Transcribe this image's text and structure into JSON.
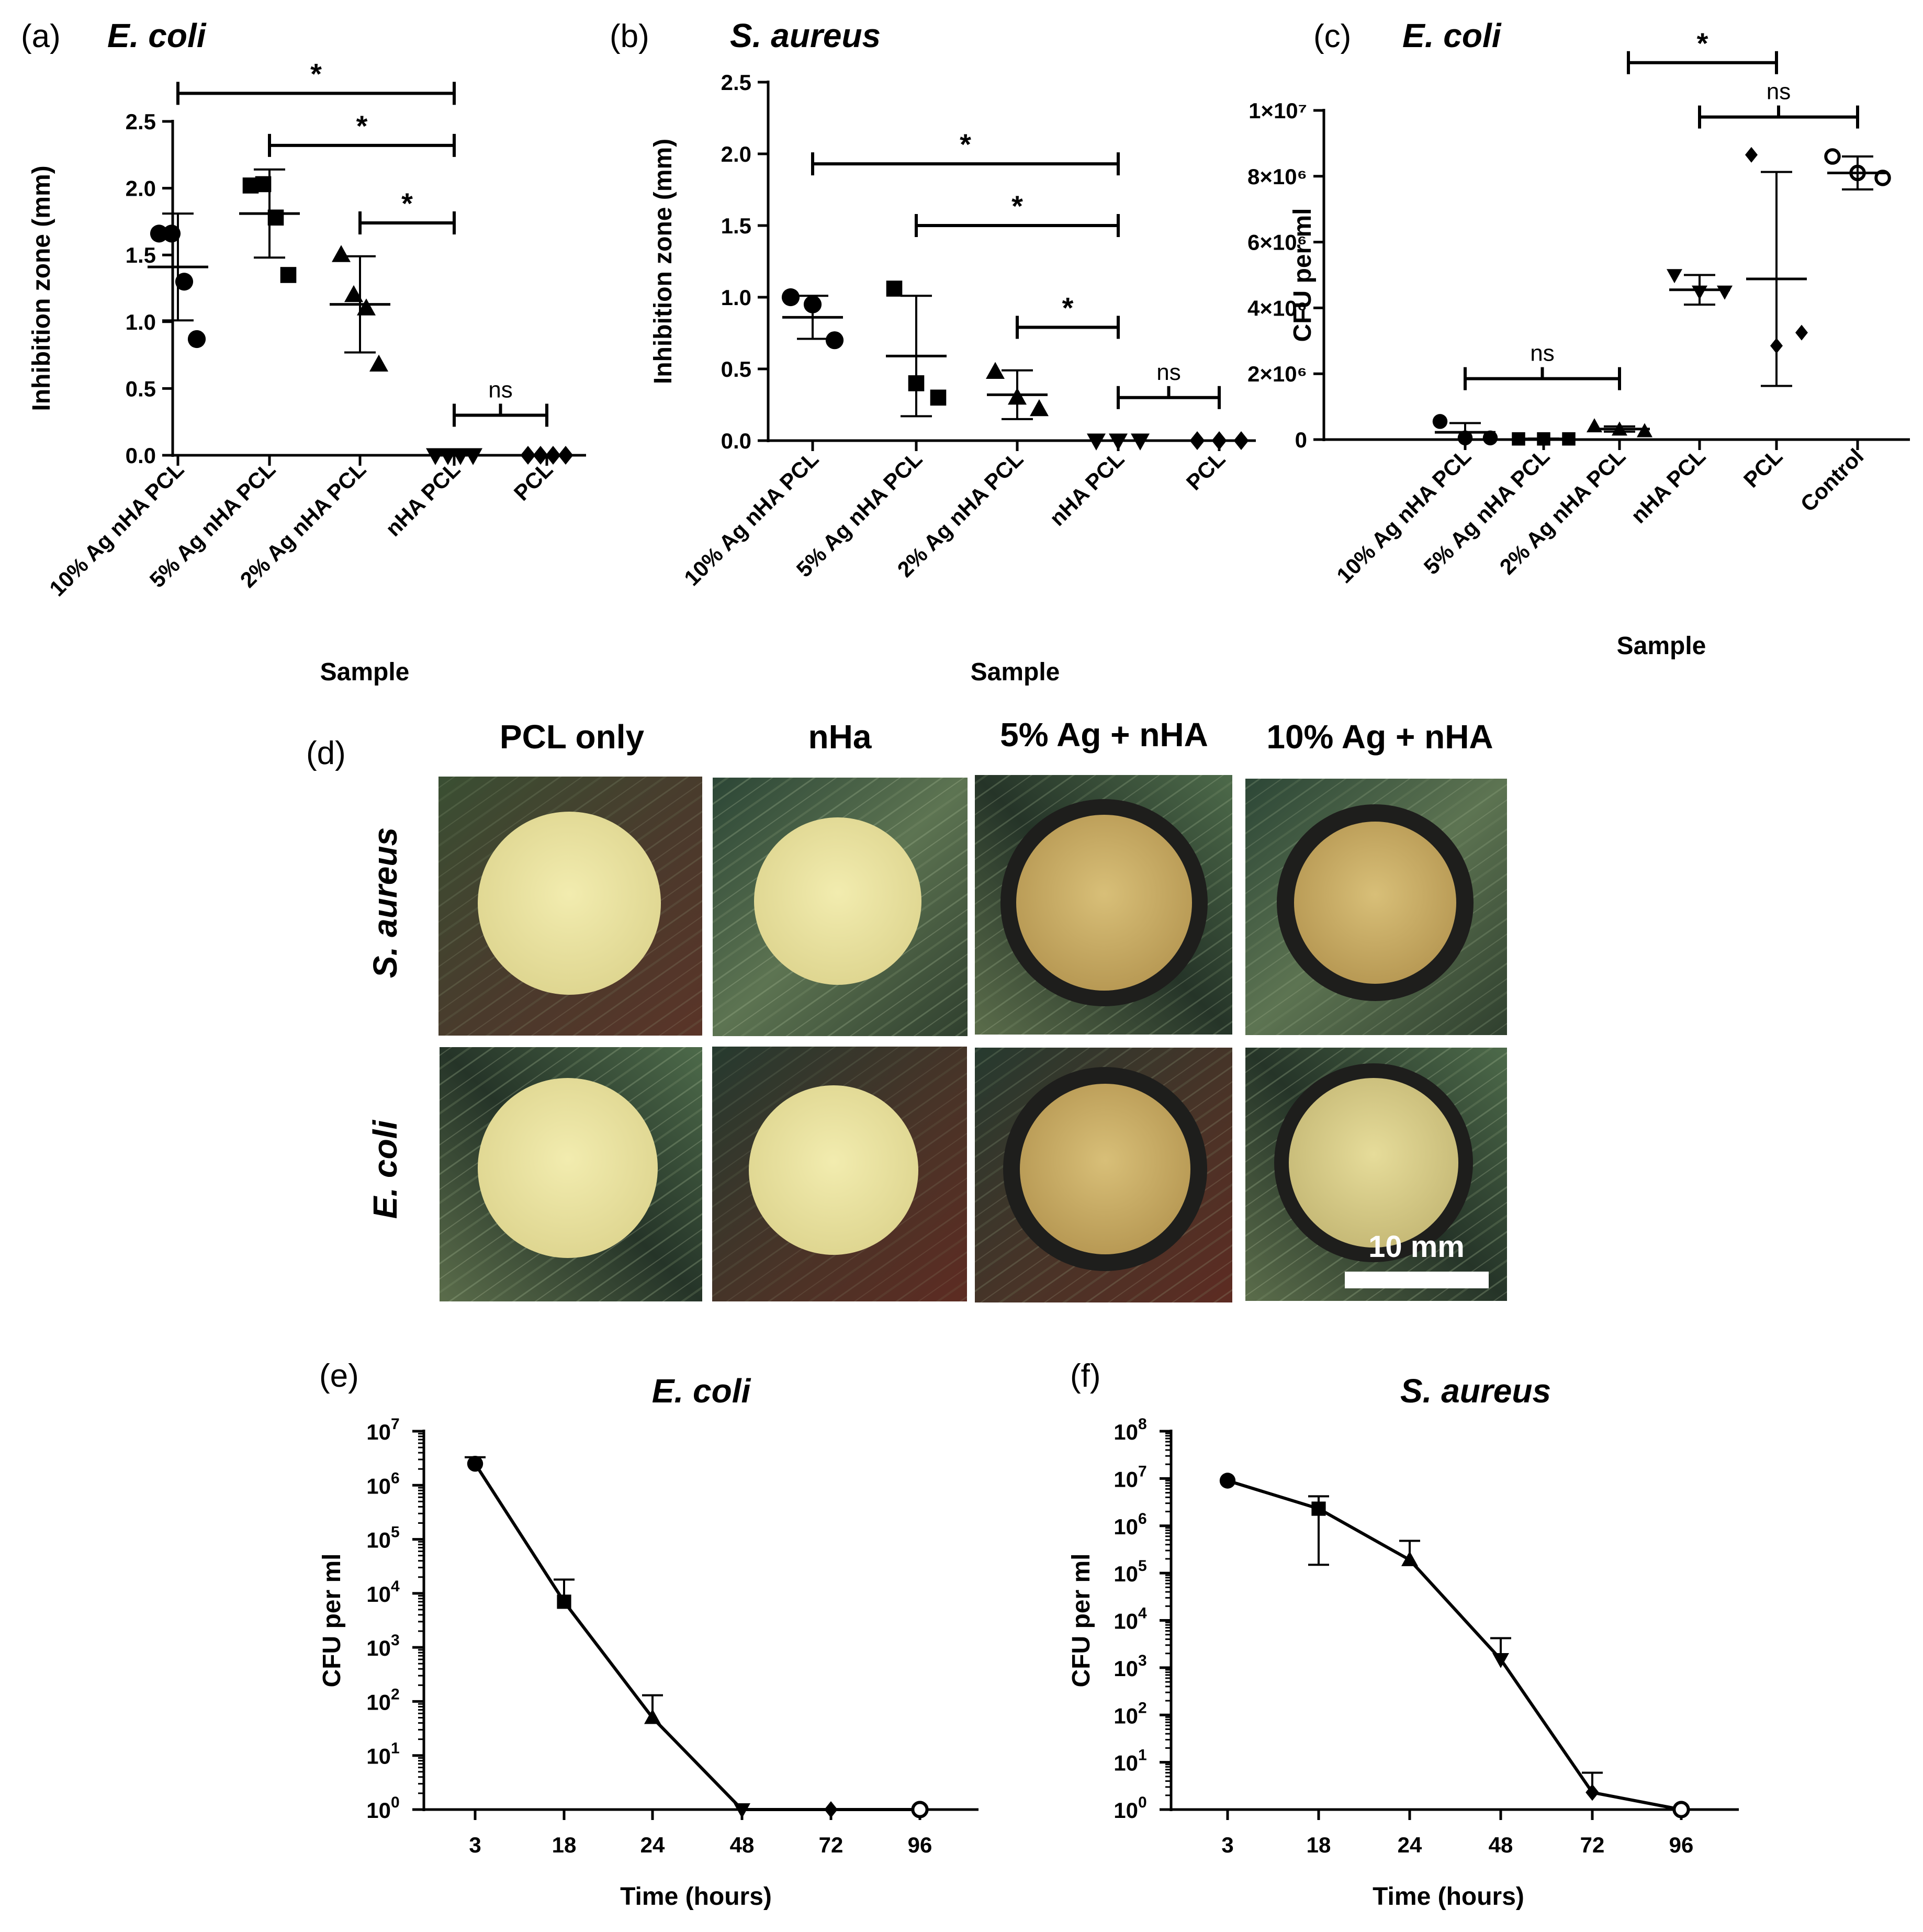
{
  "chart_data": [
    {
      "id": "a",
      "type": "scatter",
      "panel_label": "(a)",
      "title": "E. coli",
      "xlabel": "Sample",
      "ylabel": "Inhibition zone (mm)",
      "ylim": [
        0,
        2.5
      ],
      "yticks": [
        0.0,
        0.5,
        1.0,
        1.5,
        2.0,
        2.5
      ],
      "ytick_labels": [
        "0.0",
        "0.5",
        "1.0",
        "1.5",
        "2.0",
        "2.5"
      ],
      "categories": [
        "10% Ag nHA PCL",
        "5% Ag nHA PCL",
        "2% Ag nHA PCL",
        "nHA PCL",
        "PCL"
      ],
      "markers": [
        "circle",
        "square",
        "triangle-up",
        "triangle-down",
        "diamond"
      ],
      "series": [
        {
          "points": [
            1.66,
            1.66,
            1.3,
            0.87
          ],
          "mean": 1.41,
          "sd": 0.4
        },
        {
          "points": [
            2.02,
            2.03,
            1.78,
            1.35
          ],
          "mean": 1.81,
          "sd": 0.33
        },
        {
          "points": [
            1.5,
            1.2,
            1.1,
            0.68
          ],
          "mean": 1.13,
          "sd": 0.36
        },
        {
          "points": [
            0.0,
            0.0,
            0.0,
            0.0
          ],
          "mean": 0.0,
          "sd": 0.0
        },
        {
          "points": [
            0.0,
            0.0,
            0.0,
            0.0
          ],
          "mean": 0.0,
          "sd": 0.0
        }
      ],
      "brackets": [
        {
          "from": 0,
          "to": 3,
          "y": 2.71,
          "label": "*"
        },
        {
          "from": 1,
          "to": 3,
          "y": 2.32,
          "label": "*"
        },
        {
          "from": 2,
          "to": 3,
          "y": 1.74,
          "label": "*"
        },
        {
          "from": 3,
          "to": 4,
          "y": 0.3,
          "label": "ns"
        }
      ]
    },
    {
      "id": "b",
      "type": "scatter",
      "panel_label": "(b)",
      "title": "S. aureus",
      "xlabel": "Sample",
      "ylabel": "Inhibition zone (mm)",
      "ylim": [
        0,
        2.5
      ],
      "yticks": [
        0.0,
        0.5,
        1.0,
        1.5,
        2.0,
        2.5
      ],
      "ytick_labels": [
        "0.0",
        "0.5",
        "1.0",
        "1.5",
        "2.0",
        "2.5"
      ],
      "categories": [
        "10% Ag nHA PCL",
        "5% Ag nHA PCL",
        "2% Ag nHA PCL",
        "nHA PCL",
        "PCL"
      ],
      "markers": [
        "circle",
        "square",
        "triangle-up",
        "triangle-down",
        "diamond"
      ],
      "series": [
        {
          "points": [
            1.0,
            0.95,
            0.7
          ],
          "mean": 0.86,
          "sd": 0.15
        },
        {
          "points": [
            1.06,
            0.4,
            0.3
          ],
          "mean": 0.59,
          "sd": 0.42
        },
        {
          "points": [
            0.48,
            0.3,
            0.22
          ],
          "mean": 0.32,
          "sd": 0.17
        },
        {
          "points": [
            0.0,
            0.0,
            0.0
          ],
          "mean": 0.0,
          "sd": 0.0
        },
        {
          "points": [
            0.0,
            0.0,
            0.0
          ],
          "mean": 0.0,
          "sd": 0.0
        }
      ],
      "brackets": [
        {
          "from": 0,
          "to": 3,
          "y": 1.93,
          "label": "*"
        },
        {
          "from": 1,
          "to": 3,
          "y": 1.5,
          "label": "*"
        },
        {
          "from": 2,
          "to": 3,
          "y": 0.79,
          "label": "*"
        },
        {
          "from": 3,
          "to": 4,
          "y": 0.3,
          "label": "ns"
        }
      ]
    },
    {
      "id": "c",
      "type": "scatter",
      "panel_label": "(c)",
      "title": "E. coli",
      "xlabel": "Sample",
      "ylabel": "CFU per ml",
      "ylim": [
        0,
        10000000
      ],
      "yticks": [
        0,
        2000000,
        4000000,
        6000000,
        8000000,
        10000000
      ],
      "ytick_labels": [
        "0",
        "2×10⁶",
        "4×10⁶",
        "6×10⁶",
        "8×10⁶",
        "1×10⁷"
      ],
      "categories": [
        "10% Ag nHA PCL",
        "5% Ag nHA PCL",
        "2% Ag nHA PCL",
        "nHA PCL",
        "PCL",
        "Control"
      ],
      "markers": [
        "circle",
        "square",
        "triangle-up",
        "triangle-down",
        "diamond",
        "open-circle"
      ],
      "series": [
        {
          "points": [
            550000,
            50000,
            50000
          ],
          "mean": 220000,
          "sd": 280000
        },
        {
          "points": [
            20000,
            20000,
            20000
          ],
          "mean": 20000,
          "sd": 10000
        },
        {
          "points": [
            400000,
            300000,
            250000
          ],
          "mean": 320000,
          "sd": 80000
        },
        {
          "points": [
            5000000,
            4500000,
            4500000
          ],
          "mean": 4550000,
          "sd": 450000
        },
        {
          "points": [
            8650000,
            2850000,
            3250000
          ],
          "mean": 4880000,
          "sd": 3250000
        },
        {
          "points": [
            8600000,
            8100000,
            7950000
          ],
          "mean": 8100000,
          "sd": 500000
        }
      ],
      "brackets": [
        {
          "from": 0,
          "to": 2,
          "y": 1850000,
          "label": "ns"
        },
        {
          "from": 0.8,
          "to": 4,
          "y": 11450000,
          "label": "*"
        },
        {
          "from": 3,
          "to": 5,
          "y": 9800000,
          "label": "ns"
        }
      ]
    },
    {
      "id": "e",
      "type": "line",
      "panel_label": "(e)",
      "title": "E. coli",
      "xlabel": "Time (hours)",
      "ylabel": "CFU per ml",
      "yscale": "log",
      "ylim": [
        1,
        10000000
      ],
      "ytick_exponents": [
        0,
        1,
        2,
        3,
        4,
        5,
        6,
        7
      ],
      "categories": [
        "3",
        "18",
        "24",
        "48",
        "72",
        "96"
      ],
      "markers": [
        "circle",
        "square",
        "triangle-up",
        "triangle-down",
        "diamond",
        "open-circle"
      ],
      "series": [
        {
          "values": [
            2500000,
            7000,
            50,
            1,
            1,
            1
          ],
          "error_upper": [
            3300000,
            18000,
            130,
            null,
            null,
            null
          ]
        }
      ]
    },
    {
      "id": "f",
      "type": "line",
      "panel_label": "(f)",
      "title": "S. aureus",
      "xlabel": "Time (hours)",
      "ylabel": "CFU per ml",
      "yscale": "log",
      "ylim": [
        1,
        100000000
      ],
      "ytick_exponents": [
        0,
        1,
        2,
        3,
        4,
        5,
        6,
        7,
        8
      ],
      "categories": [
        "3",
        "18",
        "24",
        "48",
        "72",
        "96"
      ],
      "markers": [
        "circle",
        "square",
        "triangle-up",
        "triangle-down",
        "diamond",
        "open-circle"
      ],
      "series": [
        {
          "values": [
            9000000,
            2300000,
            190000,
            1500,
            2.3,
            1
          ],
          "error_upper": [
            null,
            4200000,
            480000,
            4200,
            6,
            null
          ],
          "error_lower": [
            null,
            150000,
            null,
            null,
            null,
            null
          ]
        }
      ]
    }
  ],
  "panel_d": {
    "panel_label": "(d)",
    "column_titles": [
      "PCL only",
      "nHa",
      "5% Ag + nHA",
      "10% Ag + nHA"
    ],
    "row_titles": [
      "S. aureus",
      "E. coli"
    ],
    "scale_bar_label": "10 mm",
    "colors": {
      "plate_dark": "#2f3a2a",
      "plate_green": "#3f5a3a",
      "disc_light": "#e9e3a2",
      "disc_tan": "#c9ac67",
      "inhibition_ring": "#1e1e1c"
    }
  }
}
